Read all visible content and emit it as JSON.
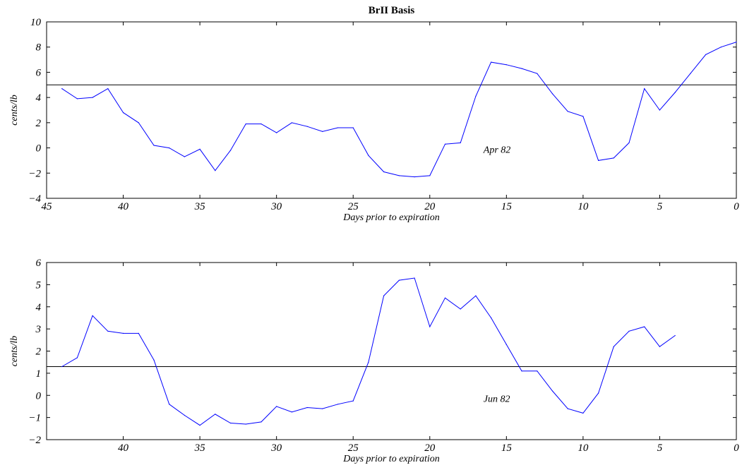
{
  "chart_data": [
    {
      "type": "line",
      "title": "BrII Basis",
      "xlabel": "Days prior to expiration",
      "ylabel": "cents/lb",
      "xlim": [
        45,
        0
      ],
      "ylim": [
        -4,
        10
      ],
      "xticks": [
        "45",
        "40",
        "35",
        "30",
        "25",
        "20",
        "15",
        "10",
        "5",
        "0"
      ],
      "yticks": [
        "10",
        "8",
        "6",
        "4",
        "2",
        "0",
        "−2",
        "−4"
      ],
      "annotation": "Apr 82",
      "annotation_at": {
        "x": 16.5,
        "y": -0.4
      },
      "reference_line": 5.0,
      "grid": false,
      "line_color": "#0000ff",
      "series": [
        {
          "x": [
            44,
            43,
            42,
            41,
            40,
            39,
            38,
            37,
            36,
            35,
            34,
            33,
            32,
            31,
            30,
            29,
            28,
            27,
            26,
            25,
            24,
            23,
            22,
            21,
            20,
            19,
            18,
            17,
            16,
            15,
            14,
            13,
            12,
            11,
            10,
            9,
            8,
            7,
            6,
            5,
            4,
            3,
            2,
            1,
            0
          ],
          "y": [
            4.7,
            3.9,
            4.0,
            4.7,
            2.8,
            2.0,
            0.2,
            0.0,
            -0.7,
            -0.1,
            -1.8,
            -0.2,
            1.9,
            1.9,
            1.2,
            2.0,
            1.7,
            1.3,
            1.6,
            1.6,
            -0.6,
            -1.9,
            -2.2,
            -2.3,
            -2.2,
            0.3,
            0.4,
            4.1,
            6.8,
            6.6,
            6.3,
            5.9,
            4.3,
            2.9,
            2.5,
            -1.0,
            -0.8,
            0.4,
            4.7,
            3.0,
            4.4,
            5.9,
            7.4,
            8.0,
            8.4
          ]
        }
      ]
    },
    {
      "type": "line",
      "title": "",
      "xlabel": "Days prior to expiration",
      "ylabel": "cents/lb",
      "xlim": [
        45,
        0
      ],
      "ylim": [
        -2,
        6
      ],
      "xticks": [
        "40",
        "35",
        "30",
        "25",
        "20",
        "15",
        "10",
        "5",
        "0"
      ],
      "yticks": [
        "6",
        "5",
        "4",
        "3",
        "2",
        "1",
        "0",
        "−1",
        "−2"
      ],
      "annotation": "Jun 82",
      "annotation_at": {
        "x": 16.5,
        "y": -0.3
      },
      "reference_line": 1.3,
      "grid": false,
      "line_color": "#0000ff",
      "series": [
        {
          "x": [
            44,
            43,
            42,
            41,
            40,
            39,
            38,
            37,
            36,
            35,
            34,
            33,
            32,
            31,
            30,
            29,
            28,
            27,
            26,
            25,
            24,
            23,
            22,
            21,
            20,
            19,
            18,
            17,
            16,
            15,
            14,
            13,
            12,
            11,
            10,
            9,
            8,
            7,
            6,
            5,
            4
          ],
          "y": [
            1.3,
            1.7,
            3.6,
            2.9,
            2.8,
            2.8,
            1.6,
            -0.4,
            -0.9,
            -1.35,
            -0.85,
            -1.25,
            -1.3,
            -1.2,
            -0.5,
            -0.75,
            -0.55,
            -0.6,
            -0.4,
            -0.25,
            1.5,
            4.5,
            5.2,
            5.3,
            3.1,
            4.4,
            3.9,
            4.5,
            3.5,
            2.3,
            1.1,
            1.1,
            0.2,
            -0.6,
            -0.8,
            0.1,
            2.2,
            2.9,
            3.1,
            2.2,
            2.7
          ]
        }
      ]
    }
  ]
}
